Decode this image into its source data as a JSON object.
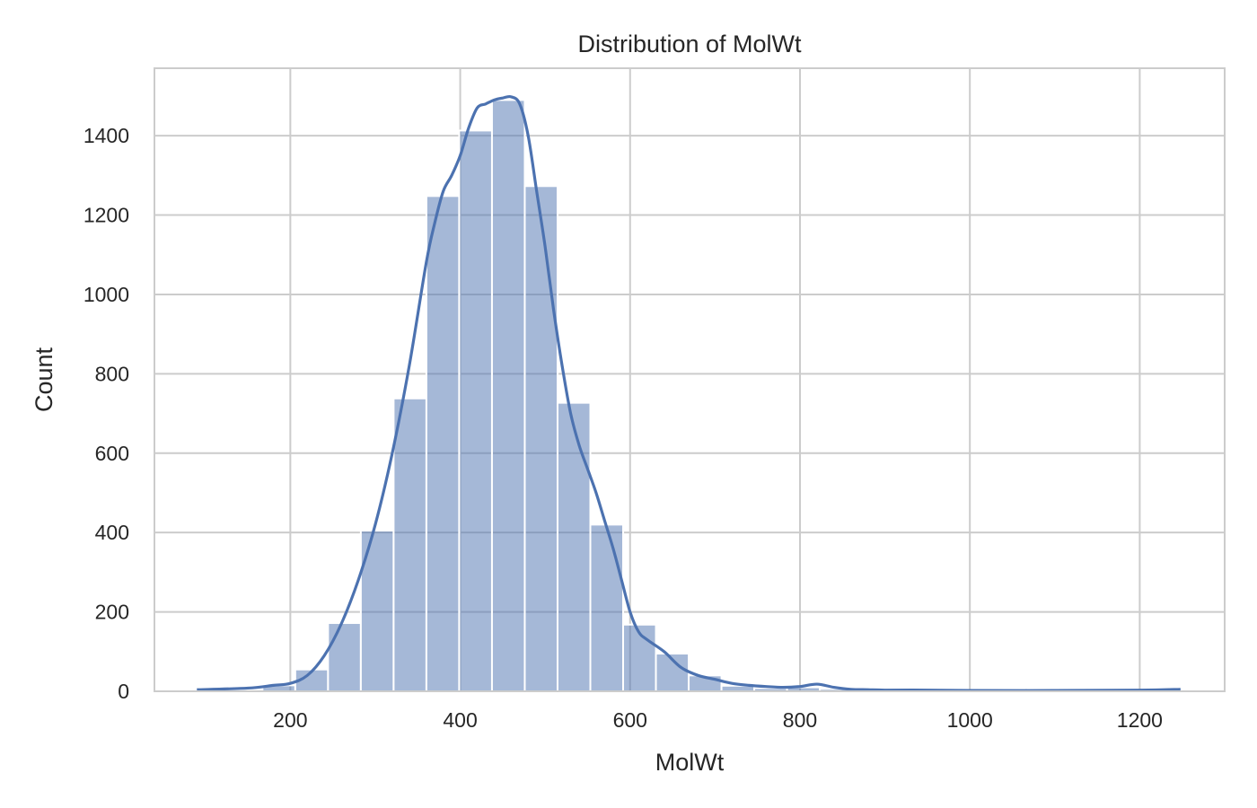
{
  "chart_data": {
    "type": "histogram",
    "title": "Distribution of MolWt",
    "xlabel": "MolWt",
    "ylabel": "Count",
    "xlim": [
      40,
      1300
    ],
    "ylim": [
      0,
      1570
    ],
    "xticks": [
      200,
      400,
      600,
      800,
      1000,
      1200
    ],
    "yticks": [
      0,
      200,
      400,
      600,
      800,
      1000,
      1200,
      1400
    ],
    "grid": true,
    "bar_color": "#4c72b0",
    "kde_color": "#4c72b0",
    "bins": [
      {
        "x0": 90,
        "x1": 128.6,
        "count": 3
      },
      {
        "x0": 128.6,
        "x1": 167.2,
        "count": 4
      },
      {
        "x0": 167.2,
        "x1": 205.8,
        "count": 15
      },
      {
        "x0": 205.8,
        "x1": 244.4,
        "count": 55
      },
      {
        "x0": 244.4,
        "x1": 283.0,
        "count": 172
      },
      {
        "x0": 283.0,
        "x1": 321.6,
        "count": 405
      },
      {
        "x0": 321.6,
        "x1": 360.2,
        "count": 738
      },
      {
        "x0": 360.2,
        "x1": 398.8,
        "count": 1248
      },
      {
        "x0": 398.8,
        "x1": 437.4,
        "count": 1413
      },
      {
        "x0": 437.4,
        "x1": 476.0,
        "count": 1490
      },
      {
        "x0": 476.0,
        "x1": 514.6,
        "count": 1273
      },
      {
        "x0": 514.6,
        "x1": 553.2,
        "count": 727
      },
      {
        "x0": 553.2,
        "x1": 591.8,
        "count": 420
      },
      {
        "x0": 591.8,
        "x1": 630.4,
        "count": 168
      },
      {
        "x0": 630.4,
        "x1": 669.0,
        "count": 95
      },
      {
        "x0": 669.0,
        "x1": 707.6,
        "count": 40
      },
      {
        "x0": 707.6,
        "x1": 746.2,
        "count": 14
      },
      {
        "x0": 746.2,
        "x1": 784.8,
        "count": 8
      },
      {
        "x0": 784.8,
        "x1": 823.4,
        "count": 10
      },
      {
        "x0": 823.4,
        "x1": 862.0,
        "count": 6
      },
      {
        "x0": 862.0,
        "x1": 900.6,
        "count": 2
      },
      {
        "x0": 900.6,
        "x1": 939.2,
        "count": 1
      },
      {
        "x0": 939.2,
        "x1": 977.8,
        "count": 2
      },
      {
        "x0": 977.8,
        "x1": 1016.4,
        "count": 1
      },
      {
        "x0": 1016.4,
        "x1": 1055.0,
        "count": 1
      },
      {
        "x0": 1055.0,
        "x1": 1093.6,
        "count": 1
      },
      {
        "x0": 1093.6,
        "x1": 1132.2,
        "count": 1
      },
      {
        "x0": 1132.2,
        "x1": 1170.8,
        "count": 1
      },
      {
        "x0": 1170.8,
        "x1": 1209.4,
        "count": 1
      },
      {
        "x0": 1209.4,
        "x1": 1248.0,
        "count": 4
      }
    ],
    "kde": {
      "x": [
        90,
        150,
        180,
        200,
        220,
        240,
        260,
        280,
        300,
        320,
        340,
        360,
        370,
        380,
        390,
        400,
        410,
        420,
        430,
        440,
        450,
        460,
        470,
        480,
        490,
        500,
        510,
        520,
        530,
        540,
        550,
        560,
        570,
        580,
        590,
        600,
        610,
        620,
        640,
        660,
        680,
        700,
        720,
        740,
        760,
        780,
        800,
        820,
        840,
        860,
        880,
        900,
        950,
        1000,
        1100,
        1200,
        1248
      ],
      "y": [
        4,
        8,
        15,
        20,
        40,
        90,
        170,
        280,
        420,
        600,
        820,
        1080,
        1180,
        1260,
        1300,
        1350,
        1420,
        1470,
        1480,
        1490,
        1495,
        1498,
        1480,
        1400,
        1260,
        1120,
        960,
        820,
        700,
        620,
        560,
        500,
        430,
        360,
        280,
        200,
        150,
        130,
        100,
        60,
        40,
        30,
        20,
        15,
        12,
        10,
        12,
        18,
        10,
        5,
        4,
        3,
        3,
        2,
        2,
        3,
        5
      ]
    }
  }
}
